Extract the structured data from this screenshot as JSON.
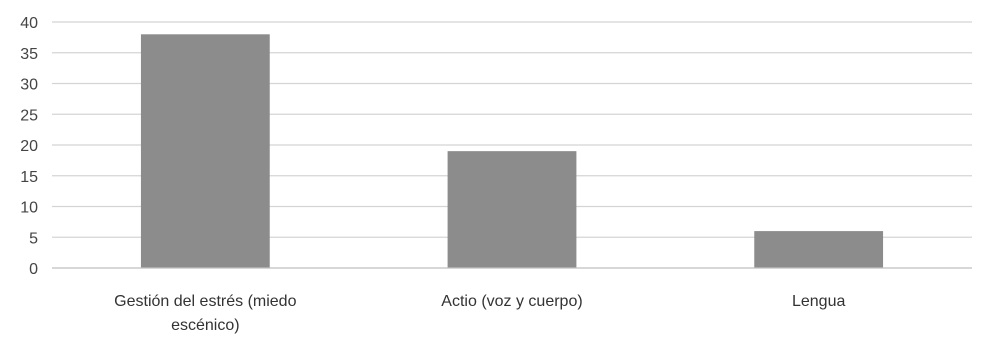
{
  "chart_data": {
    "type": "bar",
    "title": "",
    "xlabel": "",
    "ylabel": "",
    "categories": [
      "Gestión del estrés (miedo escénico)",
      "Actio (voz y cuerpo)",
      "Lengua"
    ],
    "category_label_lines": [
      [
        "Gestión del estrés (miedo",
        "escénico)"
      ],
      [
        "Actio (voz y cuerpo)"
      ],
      [
        "Lengua"
      ]
    ],
    "values": [
      38,
      19,
      6
    ],
    "ylim": [
      0,
      40
    ],
    "yticks": [
      0,
      5,
      10,
      15,
      20,
      25,
      30,
      35,
      40
    ],
    "grid": true,
    "legend": "none",
    "colors": {
      "bar": "#8c8c8c",
      "grid": "#d4d4d4",
      "axis": "#bfbfbf"
    }
  }
}
